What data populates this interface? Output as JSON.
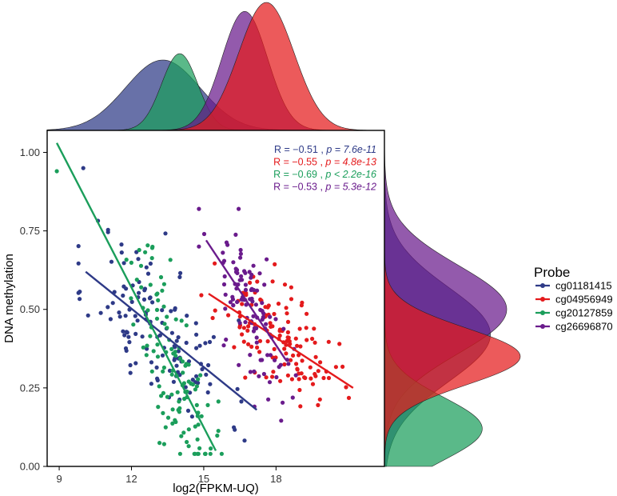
{
  "chart_data": {
    "type": "scatter",
    "subtype": "scatter with marginal density plots and linear fits",
    "xlabel": "log2(FPKM-UQ)",
    "ylabel": "DNA methylation",
    "xlim": [
      8.5,
      22.5
    ],
    "ylim": [
      0,
      1.07
    ],
    "x_ticks": [
      9,
      12,
      15,
      18
    ],
    "x_tick_labels": [
      "9",
      "12",
      "15",
      "18"
    ],
    "y_ticks": [
      0,
      0.25,
      0.5,
      0.75,
      1.0
    ],
    "y_tick_labels": [
      "0.00",
      "0.25",
      "0.50",
      "0.75",
      "1.00"
    ],
    "grid": false,
    "legend": {
      "title": "Probe",
      "position": "right",
      "entries": [
        "cg01181415",
        "cg04956949",
        "cg20127859",
        "cg26696870"
      ]
    },
    "series": [
      {
        "name": "cg01181415",
        "color": "#2e3a87",
        "correlation": {
          "prefix": "R = −0.51 , ",
          "p_label": "p = 7.6e-11"
        },
        "fit_line": {
          "x": [
            10.1,
            17.2
          ],
          "y": [
            0.62,
            0.18
          ]
        },
        "x_center": 13.1,
        "x_sd": 1.45,
        "y_center": 0.45,
        "y_sd": 0.16,
        "n_points": 130,
        "seed": 11,
        "extra_points": [
          {
            "x": 10.0,
            "y": 0.95
          }
        ],
        "density_x": {
          "center": 13.3,
          "sd": 1.55
        },
        "density_y": {
          "center": 0.42,
          "sd": 0.15,
          "peak": 0.78
        }
      },
      {
        "name": "cg04956949",
        "color": "#e41a1c",
        "correlation": {
          "prefix": "R = −0.55 , ",
          "p_label": "p = 4.8e-13"
        },
        "fit_line": {
          "x": [
            15.2,
            21.2
          ],
          "y": [
            0.55,
            0.25
          ]
        },
        "x_center": 18.0,
        "x_sd": 1.2,
        "y_center": 0.42,
        "y_sd": 0.1,
        "n_points": 130,
        "seed": 23,
        "extra_points": [],
        "density_x": {
          "center": 17.6,
          "sd": 1.15
        },
        "density_y": {
          "center": 0.35,
          "sd": 0.09,
          "peak": 1.0
        }
      },
      {
        "name": "cg20127859",
        "color": "#1b9e5b",
        "correlation": {
          "prefix": "R = −0.69 , ",
          "p_label": "p < 2.2e-16"
        },
        "fit_line": {
          "x": [
            8.9,
            15.5
          ],
          "y": [
            1.03,
            0.05
          ]
        },
        "x_center": 13.8,
        "x_sd": 0.85,
        "y_center": 0.25,
        "y_sd": 0.18,
        "n_points": 120,
        "seed": 37,
        "extra_points": [
          {
            "x": 8.9,
            "y": 0.94
          }
        ],
        "density_x": {
          "center": 14.0,
          "sd": 0.75
        },
        "density_y": {
          "center": 0.12,
          "sd": 0.1,
          "peak": 0.72
        }
      },
      {
        "name": "cg26696870",
        "color": "#6a1b8c",
        "correlation": {
          "prefix": "R = −0.53 , ",
          "p_label": "p = 5.3e-12"
        },
        "fit_line": {
          "x": [
            15.1,
            18.4
          ],
          "y": [
            0.72,
            0.34
          ]
        },
        "x_center": 17.0,
        "x_sd": 0.9,
        "y_center": 0.48,
        "y_sd": 0.14,
        "n_points": 110,
        "seed": 53,
        "extra_points": [],
        "density_x": {
          "center": 16.7,
          "sd": 0.95
        },
        "density_y": {
          "center": 0.5,
          "sd": 0.14,
          "peak": 0.9
        }
      }
    ]
  }
}
